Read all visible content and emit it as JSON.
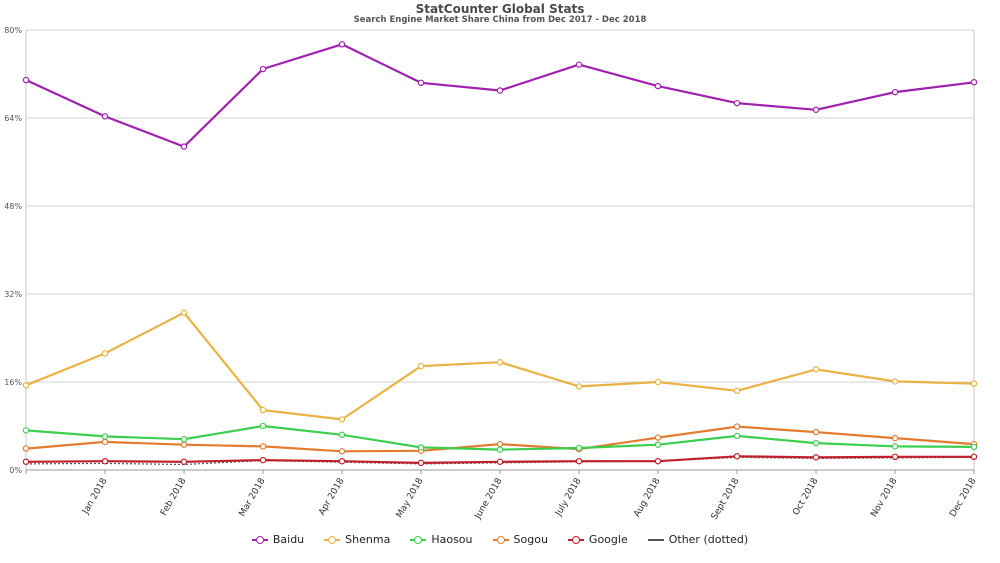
{
  "chart_data": {
    "type": "line",
    "title": "StatCounter Global Stats",
    "subtitle": "Search Engine Market Share China from Dec 2017 - Dec 2018",
    "x": [
      "Dec 2017",
      "Jan 2018",
      "Feb 2018",
      "Mar 2018",
      "Apr 2018",
      "May 2018",
      "June 2018",
      "July 2018",
      "Aug 2018",
      "Sept 2018",
      "Oct 2018",
      "Nov 2018",
      "Dec 2018"
    ],
    "x_tick_labels": [
      "",
      "Jan 2018",
      "Feb 2018",
      "Mar 2018",
      "Apr 2018",
      "May 2018",
      "June 2018",
      "July 2018",
      "Aug 2018",
      "Sept 2018",
      "Oct 2018",
      "Nov 2018",
      "Dec 2018"
    ],
    "y_ticks": [
      "0%",
      "16%",
      "32%",
      "48%",
      "64%",
      "80%"
    ],
    "ylim": [
      0,
      80
    ],
    "grid": true,
    "legend_position": "bottom",
    "series": [
      {
        "name": "Baidu",
        "color": "#a020b0",
        "values": [
          70.9,
          64.3,
          58.8,
          72.9,
          77.4,
          70.4,
          69.0,
          73.7,
          69.8,
          66.7,
          65.5,
          68.7,
          70.5
        ]
      },
      {
        "name": "Shenma",
        "color": "#eab243",
        "values": [
          15.4,
          21.2,
          28.6,
          10.9,
          9.2,
          18.9,
          19.6,
          15.2,
          16.0,
          14.4,
          18.3,
          16.1,
          15.7
        ]
      },
      {
        "name": "Haosou",
        "color": "#3ccf4e",
        "values": [
          7.2,
          6.1,
          5.6,
          8.0,
          6.4,
          4.1,
          3.7,
          4.0,
          4.6,
          6.2,
          4.9,
          4.3,
          4.2
        ]
      },
      {
        "name": "Sogou",
        "color": "#e47c2f",
        "values": [
          3.9,
          5.1,
          4.6,
          4.3,
          3.4,
          3.5,
          4.7,
          3.8,
          5.9,
          7.9,
          6.9,
          5.8,
          4.7
        ]
      },
      {
        "name": "Google",
        "color": "#c0202a",
        "values": [
          1.5,
          1.6,
          1.5,
          1.8,
          1.6,
          1.3,
          1.5,
          1.6,
          1.6,
          2.5,
          2.3,
          2.4,
          2.4
        ]
      },
      {
        "name": "Other (dotted)",
        "color": "#555555",
        "dotted": true,
        "values": [
          1.1,
          1.2,
          1.0,
          1.7,
          1.4,
          1.1,
          1.3,
          1.5,
          1.6,
          2.3,
          2.1,
          2.2,
          2.3
        ]
      }
    ]
  }
}
